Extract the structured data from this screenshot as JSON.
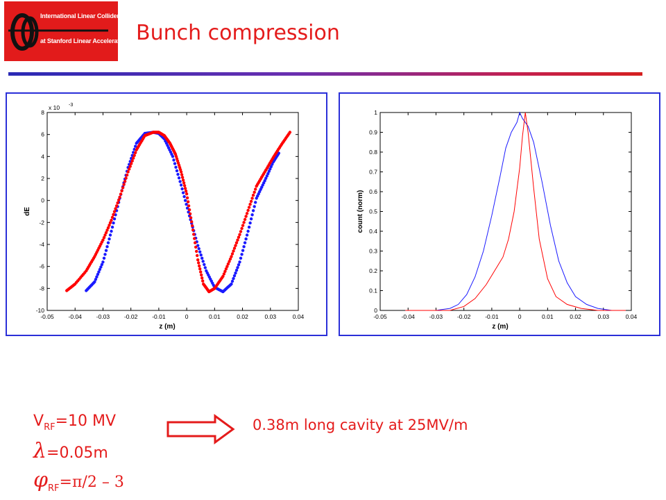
{
  "logo": {
    "line1": "International Linear Collider",
    "line2": "at Stanford Linear Accelerator Center"
  },
  "title": "Bunch compression",
  "params": {
    "vrf_symbol": "V",
    "vrf_sub": "RF",
    "vrf_value": "=10 MV",
    "lambda_symbol": "λ",
    "lambda_value": "=0.05m",
    "phi_symbol": "φ",
    "phi_sub": "RF",
    "phi_value": "=π/2 – 3"
  },
  "note": "0.38m long cavity at 25MV/m",
  "colors": {
    "accent": "#e41b1b",
    "blue_series": "#1a1aff",
    "red_series": "#ff0000",
    "panel_border": "#2a2fd8"
  },
  "chart_data": [
    {
      "type": "scatter",
      "title": "",
      "xlabel": "z (m)",
      "ylabel": "dE",
      "y_multiplier_label": "x 10",
      "y_multiplier_exp": "-3",
      "xlim": [
        -0.05,
        0.04
      ],
      "ylim": [
        -10,
        8
      ],
      "x_ticks": [
        "-0.05",
        "-0.04",
        "-0.03",
        "-0.02",
        "-0.01",
        "0",
        "0.01",
        "0.02",
        "0.03",
        "0.04"
      ],
      "y_ticks": [
        "8",
        "6",
        "4",
        "2",
        "0",
        "-2",
        "-4",
        "-6",
        "-8",
        "-10"
      ],
      "series": [
        {
          "color": "#1a1aff",
          "x": [
            -0.036,
            -0.033,
            -0.03,
            -0.027,
            -0.024,
            -0.021,
            -0.018,
            -0.015,
            -0.012,
            -0.01,
            -0.008,
            -0.005,
            -0.002,
            0.001,
            0.004,
            0.007,
            0.01,
            0.013,
            0.016,
            0.019,
            0.022,
            0.025,
            0.028,
            0.031,
            0.033
          ],
          "y": [
            -8.2,
            -7.4,
            -5.6,
            -2.8,
            0.2,
            3.0,
            5.2,
            6.1,
            6.2,
            6.1,
            5.6,
            4.0,
            1.4,
            -1.4,
            -4.1,
            -6.4,
            -7.9,
            -8.3,
            -7.6,
            -5.6,
            -2.8,
            0.2,
            1.8,
            3.5,
            4.3
          ]
        },
        {
          "color": "#ff0000",
          "x": [
            -0.043,
            -0.04,
            -0.036,
            -0.033,
            -0.03,
            -0.027,
            -0.024,
            -0.021,
            -0.018,
            -0.015,
            -0.012,
            -0.01,
            -0.008,
            -0.006,
            -0.004,
            -0.002,
            0.0,
            0.002,
            0.004,
            0.006,
            0.008,
            0.01,
            0.013,
            0.016,
            0.019,
            0.022,
            0.025,
            0.028,
            0.031,
            0.034,
            0.037
          ],
          "y": [
            -8.2,
            -7.6,
            -6.4,
            -5.1,
            -3.6,
            -1.8,
            0.3,
            2.6,
            4.6,
            5.9,
            6.2,
            6.2,
            5.9,
            5.2,
            4.2,
            2.6,
            0.6,
            -2.3,
            -5.4,
            -7.6,
            -8.3,
            -8.0,
            -6.9,
            -5.1,
            -3.1,
            -0.9,
            1.3,
            2.6,
            3.9,
            5.1,
            6.2
          ]
        }
      ]
    },
    {
      "type": "line",
      "title": "",
      "xlabel": "z (m)",
      "ylabel": "count (norm)",
      "xlim": [
        -0.05,
        0.04
      ],
      "ylim": [
        0,
        1
      ],
      "x_ticks": [
        "-0.05",
        "-0.04",
        "-0.03",
        "-0.02",
        "-0.01",
        "0",
        "0.01",
        "0.02",
        "0.03",
        "0.04"
      ],
      "y_ticks": [
        "1",
        "0.9",
        "0.8",
        "0.7",
        "0.6",
        "0.5",
        "0.4",
        "0.3",
        "0.2",
        "0.1",
        "0"
      ],
      "series": [
        {
          "color": "#1a1aff",
          "x": [
            -0.041,
            -0.03,
            -0.025,
            -0.022,
            -0.019,
            -0.016,
            -0.013,
            -0.01,
            -0.007,
            -0.005,
            -0.003,
            -0.001,
            0.0,
            0.001,
            0.003,
            0.005,
            0.008,
            0.011,
            0.014,
            0.017,
            0.02,
            0.024,
            0.028,
            0.033,
            0.038
          ],
          "y": [
            0.0,
            0.0,
            0.01,
            0.03,
            0.08,
            0.17,
            0.3,
            0.48,
            0.68,
            0.82,
            0.9,
            0.95,
            1.0,
            0.97,
            0.93,
            0.85,
            0.65,
            0.43,
            0.25,
            0.14,
            0.07,
            0.03,
            0.01,
            0.0,
            0.0
          ]
        },
        {
          "color": "#ff0000",
          "x": [
            -0.041,
            -0.03,
            -0.025,
            -0.02,
            -0.016,
            -0.012,
            -0.009,
            -0.006,
            -0.004,
            -0.002,
            0.0,
            0.001,
            0.002,
            0.003,
            0.005,
            0.007,
            0.01,
            0.013,
            0.017,
            0.022,
            0.028,
            0.038
          ],
          "y": [
            0.0,
            0.0,
            0.0,
            0.02,
            0.06,
            0.13,
            0.2,
            0.27,
            0.36,
            0.5,
            0.72,
            0.88,
            1.0,
            0.9,
            0.62,
            0.36,
            0.16,
            0.07,
            0.03,
            0.01,
            0.0,
            0.0
          ]
        }
      ]
    }
  ]
}
